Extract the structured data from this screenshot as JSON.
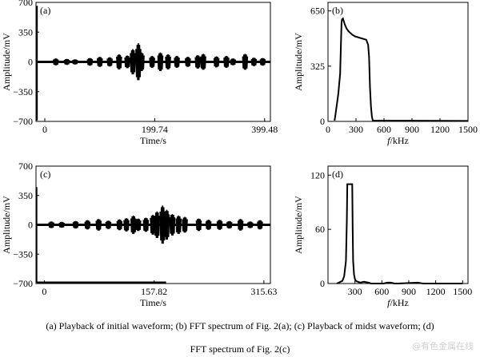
{
  "chart_data": [
    {
      "type": "line",
      "panel_label": "(a)",
      "xlabel": "Time/s",
      "ylabel": "Amplitude/mV",
      "xlim": [
        -16,
        410
      ],
      "ylim": [
        -700,
        700
      ],
      "x_ticks": [
        0,
        199.74,
        399.48
      ],
      "y_ticks": [
        -700,
        -350,
        0,
        350,
        700
      ],
      "initial_spike": {
        "x": -14,
        "ymin": -690,
        "ymax": 660
      },
      "bursts": [
        {
          "x": 20,
          "amp": 40
        },
        {
          "x": 40,
          "amp": 35
        },
        {
          "x": 55,
          "amp": 30
        },
        {
          "x": 82,
          "amp": 45
        },
        {
          "x": 100,
          "amp": 60
        },
        {
          "x": 118,
          "amp": 55
        },
        {
          "x": 135,
          "amp": 90
        },
        {
          "x": 150,
          "amp": 75
        },
        {
          "x": 160,
          "amp": 150
        },
        {
          "x": 170,
          "amp": 220
        },
        {
          "x": 176,
          "amp": 110
        },
        {
          "x": 195,
          "amp": 70
        },
        {
          "x": 210,
          "amp": 110
        },
        {
          "x": 224,
          "amp": 90
        },
        {
          "x": 240,
          "amp": 70
        },
        {
          "x": 260,
          "amp": 60
        },
        {
          "x": 278,
          "amp": 80
        },
        {
          "x": 288,
          "amp": 95
        },
        {
          "x": 312,
          "amp": 65
        },
        {
          "x": 330,
          "amp": 70
        },
        {
          "x": 342,
          "amp": 40
        },
        {
          "x": 364,
          "amp": 95
        },
        {
          "x": 380,
          "amp": 50
        },
        {
          "x": 396,
          "amp": 45
        }
      ]
    },
    {
      "type": "line",
      "panel_label": "(b)",
      "xlabel_italic": "f",
      "xlabel": "/kHz",
      "ylabel": "Amplitude/mV",
      "xlim": [
        0,
        1500
      ],
      "ylim": [
        0,
        700
      ],
      "x_ticks": [
        0,
        300,
        600,
        900,
        1200,
        1500
      ],
      "y_ticks": [
        0,
        325,
        650
      ],
      "x": [
        70,
        75,
        90,
        110,
        130,
        140,
        145,
        150,
        160,
        180,
        200,
        220,
        240,
        260,
        290,
        320,
        350,
        380,
        410,
        430,
        440,
        450,
        460,
        470,
        480,
        1500
      ],
      "y": [
        5,
        20,
        80,
        160,
        280,
        480,
        580,
        600,
        605,
        570,
        545,
        530,
        520,
        510,
        500,
        495,
        490,
        485,
        480,
        450,
        380,
        200,
        90,
        30,
        5,
        3
      ]
    },
    {
      "type": "line",
      "panel_label": "(c)",
      "xlabel": "Time/s",
      "ylabel": "Amplitude/mV",
      "xlim": [
        -12,
        325
      ],
      "ylim": [
        -700,
        700
      ],
      "x_ticks": [
        0,
        157.82,
        315.63
      ],
      "y_ticks": [
        -700,
        -350,
        0,
        350,
        700
      ],
      "initial_spike": {
        "x": -11,
        "ymin": -690,
        "ymax": 450
      },
      "bottom_bar": {
        "x0": -11,
        "x1": 175,
        "y": -700
      },
      "bursts": [
        {
          "x": 10,
          "amp": 40
        },
        {
          "x": 25,
          "amp": 35
        },
        {
          "x": 45,
          "amp": 45
        },
        {
          "x": 62,
          "amp": 55
        },
        {
          "x": 78,
          "amp": 70
        },
        {
          "x": 92,
          "amp": 50
        },
        {
          "x": 108,
          "amp": 65
        },
        {
          "x": 118,
          "amp": 80
        },
        {
          "x": 128,
          "amp": 110
        },
        {
          "x": 135,
          "amp": 75
        },
        {
          "x": 146,
          "amp": 85
        },
        {
          "x": 156,
          "amp": 120
        },
        {
          "x": 162,
          "amp": 160
        },
        {
          "x": 170,
          "amp": 230
        },
        {
          "x": 176,
          "amp": 180
        },
        {
          "x": 184,
          "amp": 130
        },
        {
          "x": 193,
          "amp": 110
        },
        {
          "x": 202,
          "amp": 95
        },
        {
          "x": 222,
          "amp": 75
        },
        {
          "x": 236,
          "amp": 60
        },
        {
          "x": 252,
          "amp": 60
        },
        {
          "x": 266,
          "amp": 45
        },
        {
          "x": 282,
          "amp": 70
        },
        {
          "x": 296,
          "amp": 40
        },
        {
          "x": 310,
          "amp": 55
        }
      ]
    },
    {
      "type": "line",
      "panel_label": "(d)",
      "xlabel_italic": "f",
      "xlabel": "/kHz",
      "ylabel": "Amplitude/mV",
      "xlim": [
        0,
        1560
      ],
      "ylim": [
        0,
        130
      ],
      "x_ticks": [
        300,
        600,
        900,
        1200,
        1500
      ],
      "y_ticks": [
        0,
        60,
        120
      ],
      "x": [
        100,
        160,
        180,
        200,
        210,
        215,
        270,
        275,
        280,
        290,
        300,
        310,
        330,
        360,
        400,
        450,
        480,
        620,
        660,
        700,
        740,
        780,
        1000,
        1060,
        1500
      ],
      "y": [
        0,
        3,
        8,
        25,
        70,
        110,
        110,
        60,
        25,
        10,
        5,
        3,
        2,
        1,
        2,
        1,
        0,
        0,
        1,
        1,
        0,
        0,
        1,
        0,
        0
      ]
    }
  ],
  "caption": {
    "line1": "(a) Playback of initial waveform; (b) FFT spectrum of Fig. 2(a); (c) Playback of midst waveform; (d)",
    "line2": "FFT spectrum of Fig. 2(c)"
  },
  "watermark": "@有色金属在线"
}
